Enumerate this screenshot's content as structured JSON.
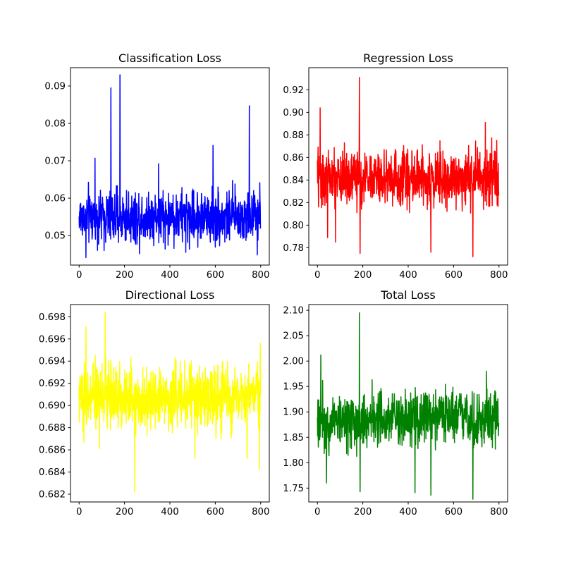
{
  "figure": {
    "background": "#ffffff"
  },
  "chart_data": [
    {
      "type": "line",
      "title": "Classification Loss",
      "color": "#0000ff",
      "xlim": [
        -38,
        838
      ],
      "ylim": [
        0.0421,
        0.0949
      ],
      "xticks": [
        0,
        200,
        400,
        600,
        800
      ],
      "yticks": [
        0.05,
        0.06,
        0.07,
        0.08,
        0.09
      ],
      "ytick_labels": [
        "0.05",
        "0.06",
        "0.07",
        "0.08",
        "0.09"
      ],
      "baseline": 0.055,
      "noise": 0.0045,
      "floor": 0.0441,
      "ceiling": 0.0729,
      "spikes": [
        [
          30,
          0.0441
        ],
        [
          70,
          0.0707
        ],
        [
          140,
          0.0895
        ],
        [
          180,
          0.093
        ],
        [
          350,
          0.0692
        ],
        [
          470,
          0.0455
        ],
        [
          590,
          0.0741
        ],
        [
          750,
          0.0847
        ],
        [
          785,
          0.0448
        ]
      ],
      "n_points": 800
    },
    {
      "type": "line",
      "title": "Regression Loss",
      "color": "#ff0000",
      "xlim": [
        -38,
        838
      ],
      "ylim": [
        0.7646,
        0.9396
      ],
      "xticks": [
        0,
        200,
        400,
        600,
        800
      ],
      "yticks": [
        0.78,
        0.8,
        0.82,
        0.84,
        0.86,
        0.88,
        0.9,
        0.92
      ],
      "ytick_labels": [
        "0.78",
        "0.80",
        "0.82",
        "0.84",
        "0.86",
        "0.88",
        "0.90",
        "0.92"
      ],
      "baseline": 0.842,
      "noise": 0.016,
      "floor": 0.79,
      "ceiling": 0.895,
      "spikes": [
        [
          12,
          0.904
        ],
        [
          45,
          0.789
        ],
        [
          80,
          0.785
        ],
        [
          185,
          0.931
        ],
        [
          188,
          0.775
        ],
        [
          500,
          0.776
        ],
        [
          685,
          0.772
        ],
        [
          740,
          0.891
        ]
      ],
      "n_points": 800
    },
    {
      "type": "line",
      "title": "Directional Loss",
      "color": "#ffff00",
      "xlim": [
        -38,
        838
      ],
      "ylim": [
        0.6813,
        0.6991
      ],
      "xticks": [
        0,
        200,
        400,
        600,
        800
      ],
      "yticks": [
        0.682,
        0.684,
        0.686,
        0.688,
        0.69,
        0.692,
        0.694,
        0.696,
        0.698
      ],
      "ytick_labels": [
        "0.682",
        "0.684",
        "0.686",
        "0.688",
        "0.690",
        "0.692",
        "0.694",
        "0.696",
        "0.698"
      ],
      "baseline": 0.6908,
      "noise": 0.0018,
      "floor": 0.6862,
      "ceiling": 0.6962,
      "spikes": [
        [
          30,
          0.6971
        ],
        [
          90,
          0.6861
        ],
        [
          115,
          0.6984
        ],
        [
          245,
          0.6822
        ],
        [
          510,
          0.6852
        ],
        [
          740,
          0.6852
        ],
        [
          795,
          0.6842
        ],
        [
          798,
          0.6956
        ]
      ],
      "n_points": 800
    },
    {
      "type": "line",
      "title": "Total Loss",
      "color": "#008000",
      "xlim": [
        -38,
        838
      ],
      "ylim": [
        1.7227,
        2.1113
      ],
      "xticks": [
        0,
        200,
        400,
        600,
        800
      ],
      "yticks": [
        1.75,
        1.8,
        1.85,
        1.9,
        1.95,
        2.0,
        2.05,
        2.1
      ],
      "ytick_labels": [
        "1.75",
        "1.80",
        "1.85",
        "1.90",
        "1.95",
        "2.00",
        "2.05",
        "2.10"
      ],
      "baseline": 1.885,
      "noise": 0.035,
      "floor": 1.77,
      "ceiling": 1.99,
      "spikes": [
        [
          15,
          2.012
        ],
        [
          40,
          1.76
        ],
        [
          185,
          2.095
        ],
        [
          188,
          1.743
        ],
        [
          430,
          1.741
        ],
        [
          500,
          1.736
        ],
        [
          685,
          1.728
        ],
        [
          745,
          1.98
        ]
      ],
      "n_points": 800
    }
  ]
}
